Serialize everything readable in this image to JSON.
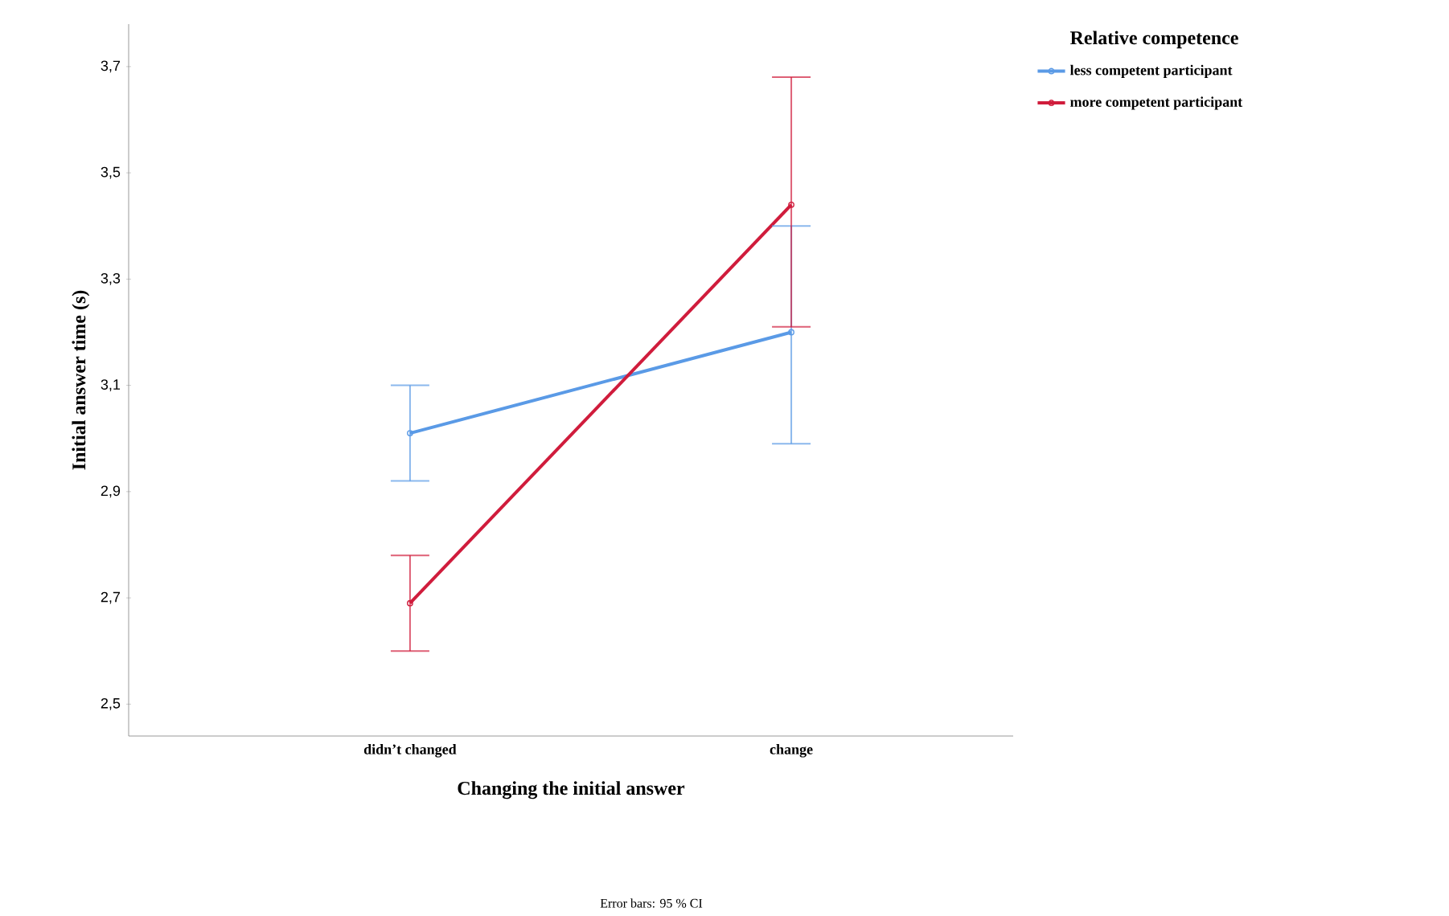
{
  "chart_data": {
    "type": "line",
    "xlabel": "Changing the initial answer",
    "ylabel": "Initial answer time (s)",
    "legend_title": "Relative competence",
    "categories": [
      "didn’t changed",
      "change"
    ],
    "series": [
      {
        "name": "less competent participant",
        "color": "#5a9ae6",
        "values": [
          3.01,
          3.2
        ],
        "errors": [
          [
            2.92,
            3.1
          ],
          [
            2.99,
            3.4
          ]
        ]
      },
      {
        "name": "more competent participant",
        "color": "#d01c3c",
        "values": [
          2.69,
          3.44
        ],
        "errors": [
          [
            2.6,
            2.78
          ],
          [
            3.21,
            3.68
          ]
        ]
      }
    ],
    "ylim": [
      2.44,
      3.78
    ],
    "yticks": [
      {
        "value": 2.5,
        "label": "2,5"
      },
      {
        "value": 2.7,
        "label": "2,7"
      },
      {
        "value": 2.9,
        "label": "2,9"
      },
      {
        "value": 3.1,
        "label": "3,1"
      },
      {
        "value": 3.3,
        "label": "3,3"
      },
      {
        "value": 3.5,
        "label": "3,5"
      },
      {
        "value": 3.7,
        "label": "3,7"
      }
    ],
    "grid": false,
    "legend": "right",
    "marker": "circle",
    "line_style": "solid",
    "annotations": [
      "Error bars: 95 % CI"
    ]
  }
}
